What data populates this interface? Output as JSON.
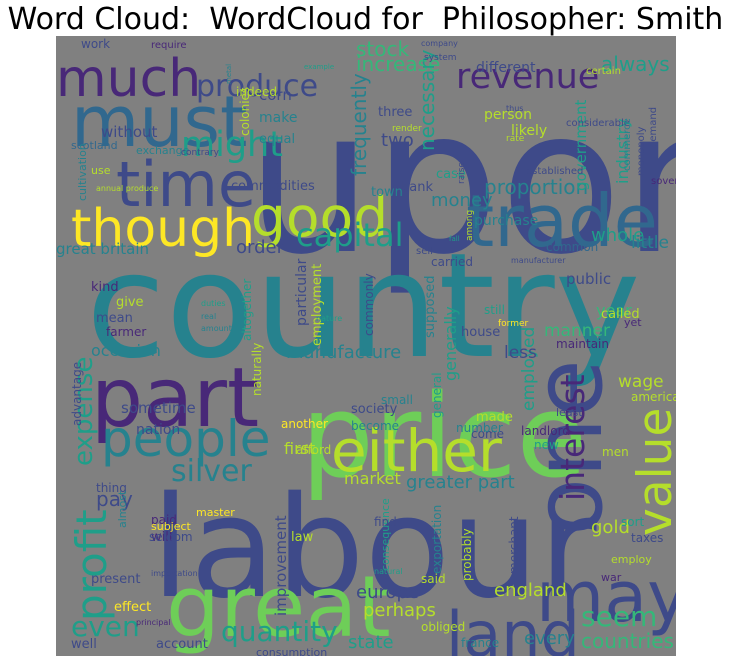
{
  "title": "Word Cloud:  WordCloud for  Philosopher: Smith",
  "background_color": "#808080",
  "palette": {
    "purple": "#482878",
    "indigo": "#3e4a89",
    "blue": "#31688e",
    "teal": "#26828e",
    "green": "#1f9e89",
    "lime": "#35b779",
    "yellowgreen": "#6ece58",
    "light": "#b5de2b",
    "yellow": "#fde725"
  },
  "words": [
    {
      "text": "upon",
      "color": "indigo"
    },
    {
      "text": "country",
      "color": "teal"
    },
    {
      "text": "labour",
      "color": "indigo"
    },
    {
      "text": "price",
      "color": "yellowgreen"
    },
    {
      "text": "part",
      "color": "purple"
    },
    {
      "text": "one",
      "color": "indigo"
    },
    {
      "text": "great",
      "color": "yellowgreen"
    },
    {
      "text": "trade",
      "color": "blue"
    },
    {
      "text": "time",
      "color": "indigo"
    },
    {
      "text": "must",
      "color": "blue"
    },
    {
      "text": "much",
      "color": "purple"
    },
    {
      "text": "though",
      "color": "yellow"
    },
    {
      "text": "good",
      "color": "light"
    },
    {
      "text": "either",
      "color": "light"
    },
    {
      "text": "may",
      "color": "indigo"
    },
    {
      "text": "land",
      "color": "indigo"
    },
    {
      "text": "people",
      "color": "teal"
    },
    {
      "text": "value",
      "color": "light"
    },
    {
      "text": "profit",
      "color": "green"
    },
    {
      "text": "revenue",
      "color": "purple"
    },
    {
      "text": "produce",
      "color": "indigo"
    },
    {
      "text": "capital",
      "color": "green"
    },
    {
      "text": "might",
      "color": "green"
    },
    {
      "text": "interest",
      "color": "purple"
    },
    {
      "text": "quantity",
      "color": "green"
    },
    {
      "text": "seem",
      "color": "lime"
    },
    {
      "text": "silver",
      "color": "teal"
    },
    {
      "text": "even",
      "color": "green"
    },
    {
      "text": "expense",
      "color": "green"
    },
    {
      "text": "proportion",
      "color": "teal"
    },
    {
      "text": "increase",
      "color": "lime"
    },
    {
      "text": "stock",
      "color": "lime"
    },
    {
      "text": "always",
      "color": "green"
    },
    {
      "text": "necessary",
      "color": "green"
    },
    {
      "text": "frequently",
      "color": "teal"
    },
    {
      "text": "manufacture",
      "color": "teal"
    },
    {
      "text": "countries",
      "color": "lime"
    },
    {
      "text": "greater part",
      "color": "teal"
    },
    {
      "text": "europe",
      "color": "indigo"
    },
    {
      "text": "england",
      "color": "light"
    },
    {
      "text": "state",
      "color": "green"
    },
    {
      "text": "every",
      "color": "teal"
    },
    {
      "text": "perhaps",
      "color": "light"
    },
    {
      "text": "gold",
      "color": "light"
    },
    {
      "text": "first",
      "color": "light"
    },
    {
      "text": "nation",
      "color": "indigo"
    },
    {
      "text": "pay",
      "color": "indigo"
    },
    {
      "text": "market",
      "color": "light"
    },
    {
      "text": "improvement",
      "color": "indigo"
    },
    {
      "text": "employed",
      "color": "green"
    },
    {
      "text": "generally",
      "color": "green"
    },
    {
      "text": "manner",
      "color": "lime"
    },
    {
      "text": "less",
      "color": "indigo"
    },
    {
      "text": "wage",
      "color": "light"
    },
    {
      "text": "money",
      "color": "teal"
    },
    {
      "text": "whole",
      "color": "green"
    },
    {
      "text": "little",
      "color": "teal"
    },
    {
      "text": "government",
      "color": "green"
    },
    {
      "text": "industry",
      "color": "green"
    },
    {
      "text": "year",
      "color": "lime"
    },
    {
      "text": "public",
      "color": "indigo"
    },
    {
      "text": "order",
      "color": "indigo"
    },
    {
      "text": "great britain",
      "color": "teal"
    },
    {
      "text": "occasion",
      "color": "teal"
    },
    {
      "text": "sometime",
      "color": "indigo"
    },
    {
      "text": "two",
      "color": "indigo"
    },
    {
      "text": "different",
      "color": "indigo"
    },
    {
      "text": "likely",
      "color": "light"
    },
    {
      "text": "person",
      "color": "light"
    },
    {
      "text": "three",
      "color": "indigo"
    },
    {
      "text": "corn",
      "color": "indigo"
    },
    {
      "text": "make",
      "color": "teal"
    },
    {
      "text": "equal",
      "color": "teal"
    },
    {
      "text": "without",
      "color": "indigo"
    },
    {
      "text": "commodities",
      "color": "indigo"
    },
    {
      "text": "purchase",
      "color": "teal"
    },
    {
      "text": "bank",
      "color": "indigo"
    },
    {
      "text": "case",
      "color": "green"
    },
    {
      "text": "town",
      "color": "teal"
    },
    {
      "text": "common",
      "color": "blue"
    },
    {
      "text": "carried",
      "color": "indigo"
    },
    {
      "text": "kind",
      "color": "purple"
    },
    {
      "text": "give",
      "color": "light"
    },
    {
      "text": "mean",
      "color": "indigo"
    },
    {
      "text": "farmer",
      "color": "purple"
    },
    {
      "text": "employment",
      "color": "light"
    },
    {
      "text": "particular",
      "color": "indigo"
    },
    {
      "text": "altogether",
      "color": "green"
    },
    {
      "text": "commonly",
      "color": "indigo"
    },
    {
      "text": "supposed",
      "color": "teal"
    },
    {
      "text": "house",
      "color": "indigo"
    },
    {
      "text": "called",
      "color": "light"
    },
    {
      "text": "maintain",
      "color": "purple"
    },
    {
      "text": "still",
      "color": "green"
    },
    {
      "text": "society",
      "color": "indigo"
    },
    {
      "text": "made",
      "color": "light"
    },
    {
      "text": "become",
      "color": "teal"
    },
    {
      "text": "come",
      "color": "indigo"
    },
    {
      "text": "least",
      "color": "indigo"
    },
    {
      "text": "america",
      "color": "light"
    },
    {
      "text": "naturally",
      "color": "light"
    },
    {
      "text": "small",
      "color": "teal"
    },
    {
      "text": "advantage",
      "color": "indigo"
    },
    {
      "text": "general",
      "color": "green"
    },
    {
      "text": "another",
      "color": "yellow"
    },
    {
      "text": "afford",
      "color": "light"
    },
    {
      "text": "number",
      "color": "teal"
    },
    {
      "text": "landlord",
      "color": "purple"
    },
    {
      "text": "new",
      "color": "green"
    },
    {
      "text": "men",
      "color": "light"
    },
    {
      "text": "thing",
      "color": "indigo"
    },
    {
      "text": "paid",
      "color": "purple"
    },
    {
      "text": "will",
      "color": "purple"
    },
    {
      "text": "master",
      "color": "yellow"
    },
    {
      "text": "subject",
      "color": "yellow"
    },
    {
      "text": "seldom",
      "color": "indigo"
    },
    {
      "text": "law",
      "color": "light"
    },
    {
      "text": "consequence",
      "color": "green"
    },
    {
      "text": "find",
      "color": "indigo"
    },
    {
      "text": "exportation",
      "color": "teal"
    },
    {
      "text": "probably",
      "color": "light"
    },
    {
      "text": "merchant",
      "color": "indigo"
    },
    {
      "text": "sort",
      "color": "green"
    },
    {
      "text": "taxes",
      "color": "indigo"
    },
    {
      "text": "present",
      "color": "indigo"
    },
    {
      "text": "effect",
      "color": "yellow"
    },
    {
      "text": "account",
      "color": "indigo"
    },
    {
      "text": "well",
      "color": "indigo"
    },
    {
      "text": "said",
      "color": "light"
    },
    {
      "text": "france",
      "color": "teal"
    },
    {
      "text": "obliged",
      "color": "light"
    },
    {
      "text": "war",
      "color": "purple"
    },
    {
      "text": "employ",
      "color": "light"
    },
    {
      "text": "consumption",
      "color": "indigo"
    },
    {
      "text": "work",
      "color": "indigo"
    },
    {
      "text": "require",
      "color": "purple"
    },
    {
      "text": "indeed",
      "color": "light"
    },
    {
      "text": "colonies",
      "color": "light"
    },
    {
      "text": "scotland",
      "color": "blue"
    },
    {
      "text": "exchange",
      "color": "teal"
    },
    {
      "text": "cultivation",
      "color": "teal"
    },
    {
      "text": "use",
      "color": "light"
    },
    {
      "text": "certain",
      "color": "light"
    },
    {
      "text": "considerable",
      "color": "indigo"
    },
    {
      "text": "system",
      "color": "indigo"
    },
    {
      "text": "company",
      "color": "indigo"
    },
    {
      "text": "demand",
      "color": "indigo"
    },
    {
      "text": "sovereign",
      "color": "purple"
    },
    {
      "text": "commerce",
      "color": "teal"
    },
    {
      "text": "monopoly",
      "color": "indigo"
    },
    {
      "text": "established",
      "color": "indigo"
    },
    {
      "text": "sell",
      "color": "indigo"
    },
    {
      "text": "among",
      "color": "light"
    },
    {
      "text": "raise",
      "color": "indigo"
    },
    {
      "text": "rate",
      "color": "light"
    },
    {
      "text": "render",
      "color": "light"
    },
    {
      "text": "thus",
      "color": "indigo"
    },
    {
      "text": "yet",
      "color": "purple"
    },
    {
      "text": "former",
      "color": "yellow"
    },
    {
      "text": "contrary",
      "color": "indigo"
    },
    {
      "text": "annual produce",
      "color": "light"
    },
    {
      "text": "duties",
      "color": "green"
    },
    {
      "text": "real",
      "color": "teal"
    },
    {
      "text": "amount",
      "color": "teal"
    },
    {
      "text": "nature",
      "color": "green"
    },
    {
      "text": "natural",
      "color": "green"
    },
    {
      "text": "importation",
      "color": "indigo"
    },
    {
      "text": "principal",
      "color": "purple"
    },
    {
      "text": "almost",
      "color": "teal"
    },
    {
      "text": "manufacturer",
      "color": "indigo"
    },
    {
      "text": "metal",
      "color": "teal"
    },
    {
      "text": "example",
      "color": "green"
    },
    {
      "text": "fall",
      "color": "green"
    }
  ]
}
